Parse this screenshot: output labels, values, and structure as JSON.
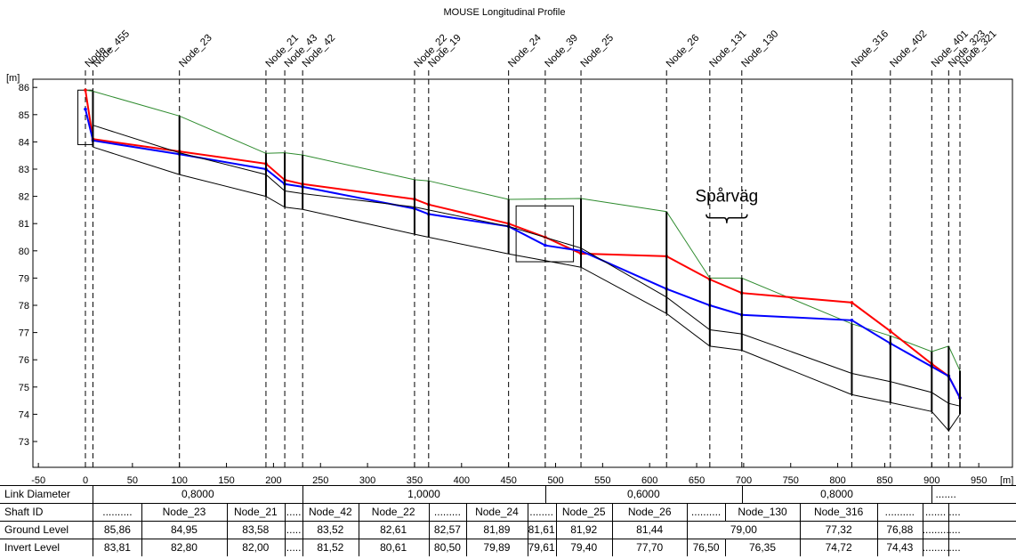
{
  "chart_data": {
    "type": "line",
    "title": "MOUSE Longitudinal Profile",
    "y_unit": "[m]",
    "x_unit": "[m]",
    "xlim": [
      -50,
      950
    ],
    "ylim": [
      72.5,
      86.3
    ],
    "x_ticks": [
      -50,
      0,
      50,
      100,
      150,
      200,
      250,
      300,
      350,
      400,
      450,
      500,
      550,
      600,
      650,
      700,
      750,
      800,
      850,
      900,
      950
    ],
    "y_ticks": [
      73,
      74,
      75,
      76,
      77,
      78,
      79,
      80,
      81,
      82,
      83,
      84,
      85,
      86
    ],
    "nodes": [
      {
        "x": 0,
        "label": "Node_455b"
      },
      {
        "x": 8,
        "label": "Node_455"
      },
      {
        "x": 100,
        "label": "Node_23"
      },
      {
        "x": 192,
        "label": "Node_21"
      },
      {
        "x": 212,
        "label": "Node_43"
      },
      {
        "x": 231,
        "label": "Node_42"
      },
      {
        "x": 350,
        "label": "Node_22"
      },
      {
        "x": 365,
        "label": "Node_19"
      },
      {
        "x": 450,
        "label": "Node_24"
      },
      {
        "x": 489,
        "label": "Node_39"
      },
      {
        "x": 527,
        "label": "Node_25"
      },
      {
        "x": 618,
        "label": "Node_26"
      },
      {
        "x": 664,
        "label": "Node_131"
      },
      {
        "x": 698,
        "label": "Node_130"
      },
      {
        "x": 815,
        "label": "Node_316"
      },
      {
        "x": 856,
        "label": "Node_402"
      },
      {
        "x": 900,
        "label": "Node_401"
      },
      {
        "x": 918,
        "label": "Node_323"
      },
      {
        "x": 930,
        "label": "Node_321"
      }
    ],
    "node_label_text": {
      "n0": "Node_",
      "n1": "Node_455",
      "n2": "Node_23",
      "n3": "Node_21",
      "n4": "Node_43",
      "n5": "Node_42",
      "n6": "Node_22",
      "n7": "Node_19",
      "n8": "Node_24",
      "n9": "Node_39",
      "n10": "Node_25",
      "n11": "Node_26",
      "n12": "Node_131",
      "n13": "Node_130",
      "n14": "Node_316",
      "n15": "Node_402",
      "n16": "Node_401",
      "n17": "Node_323",
      "n18": "Node_321"
    },
    "series": [
      {
        "key": "ground",
        "color": "#2e8b2e",
        "x": [
          0,
          8,
          100,
          192,
          212,
          231,
          350,
          365,
          450,
          527,
          618,
          664,
          698,
          815,
          856,
          900,
          918,
          930
        ],
        "y": [
          85.9,
          85.86,
          84.95,
          83.58,
          83.6,
          83.52,
          82.61,
          82.57,
          81.89,
          81.92,
          81.44,
          79.0,
          79.0,
          77.32,
          76.88,
          76.3,
          76.5,
          75.6
        ]
      },
      {
        "key": "max_level",
        "color": "#ff0000",
        "x": [
          0,
          8,
          100,
          192,
          212,
          231,
          350,
          365,
          450,
          489,
          527,
          618,
          664,
          698,
          815,
          856,
          900,
          918,
          930
        ],
        "y": [
          85.9,
          84.1,
          83.65,
          83.2,
          82.6,
          82.45,
          81.9,
          81.7,
          81.0,
          80.5,
          79.9,
          79.8,
          78.95,
          78.45,
          78.1,
          77.05,
          75.85,
          75.4,
          74.6
        ]
      },
      {
        "key": "min_level",
        "color": "#0000ff",
        "x": [
          0,
          8,
          100,
          192,
          212,
          231,
          350,
          365,
          450,
          489,
          527,
          618,
          664,
          698,
          815,
          856,
          900,
          918,
          930
        ],
        "y": [
          85.2,
          84.05,
          83.55,
          83.0,
          82.45,
          82.35,
          81.55,
          81.35,
          80.9,
          80.2,
          80.0,
          78.6,
          78.0,
          77.65,
          77.45,
          76.6,
          75.75,
          75.4,
          74.6
        ]
      },
      {
        "key": "pipe_crown",
        "color": "#000000",
        "x": [
          8,
          100,
          192,
          212,
          231,
          350,
          365,
          450,
          527,
          618,
          664,
          698,
          815,
          856,
          900,
          918,
          930
        ],
        "y": [
          84.61,
          83.6,
          82.8,
          82.2,
          82.1,
          81.61,
          81.5,
          80.9,
          80.1,
          78.3,
          77.1,
          76.95,
          75.5,
          75.2,
          74.8,
          74.4,
          74.3
        ]
      },
      {
        "key": "pipe_invert",
        "color": "#000000",
        "x": [
          8,
          100,
          192,
          212,
          231,
          350,
          365,
          450,
          527,
          618,
          664,
          698,
          815,
          856,
          900,
          918,
          930
        ],
        "y": [
          83.81,
          82.8,
          82.0,
          81.6,
          81.52,
          80.61,
          80.5,
          79.89,
          79.4,
          77.7,
          76.5,
          76.35,
          74.72,
          74.43,
          74.1,
          73.4,
          74.0
        ]
      }
    ],
    "annotations": [
      {
        "text": "Spårväg",
        "x": 682,
        "y": 81.8
      }
    ]
  },
  "table": {
    "rows": [
      {
        "key": "diam",
        "label": "Link Diameter",
        "cells": [
          {
            "text": "0,8000",
            "x0": 8,
            "x1": 231
          },
          {
            "text": "1,0000",
            "x0": 231,
            "x1": 489
          },
          {
            "text": "0,6000",
            "x0": 489,
            "x1": 698
          },
          {
            "text": "0,8000",
            "x0": 698,
            "x1": 900
          },
          {
            "text": ".......",
            "x0": 900,
            "x1": 930
          }
        ]
      },
      {
        "key": "shaft",
        "label": "Shaft ID",
        "cells": [
          {
            "text": "..........",
            "x0": 8,
            "x1": 60
          },
          {
            "text": "Node_23",
            "x0": 60,
            "x1": 150
          },
          {
            "text": "Node_21",
            "x0": 150,
            "x1": 212
          },
          {
            "text": ".....",
            "x0": 212,
            "x1": 231
          },
          {
            "text": "Node_42",
            "x0": 231,
            "x1": 290
          },
          {
            "text": "Node_22",
            "x0": 290,
            "x1": 365
          },
          {
            "text": ".........",
            "x0": 365,
            "x1": 405
          },
          {
            "text": "Node_24",
            "x0": 405,
            "x1": 470
          },
          {
            "text": "........",
            "x0": 470,
            "x1": 500
          },
          {
            "text": "Node_25",
            "x0": 500,
            "x1": 560
          },
          {
            "text": "Node_26",
            "x0": 560,
            "x1": 640
          },
          {
            "text": "..........",
            "x0": 640,
            "x1": 680
          },
          {
            "text": "Node_130",
            "x0": 680,
            "x1": 760
          },
          {
            "text": "Node_316",
            "x0": 760,
            "x1": 842
          },
          {
            "text": "..........",
            "x0": 842,
            "x1": 890
          },
          {
            "text": ".......",
            "x0": 890,
            "x1": 918
          },
          {
            "text": ".....",
            "x0": 918,
            "x1": 930
          }
        ]
      },
      {
        "key": "ground",
        "label": "Ground Level",
        "cells": [
          {
            "text": "85,86",
            "x0": 8,
            "x1": 60
          },
          {
            "text": "84,95",
            "x0": 60,
            "x1": 150
          },
          {
            "text": "83,58",
            "x0": 150,
            "x1": 212
          },
          {
            "text": ".....",
            "x0": 212,
            "x1": 231
          },
          {
            "text": "83,52",
            "x0": 231,
            "x1": 290
          },
          {
            "text": "82,61",
            "x0": 290,
            "x1": 365
          },
          {
            "text": "82,57",
            "x0": 365,
            "x1": 405
          },
          {
            "text": "81,89",
            "x0": 405,
            "x1": 470
          },
          {
            "text": "81,61",
            "x0": 470,
            "x1": 500
          },
          {
            "text": "81,92",
            "x0": 500,
            "x1": 560
          },
          {
            "text": "81,44",
            "x0": 560,
            "x1": 640
          },
          {
            "text": "79,00",
            "x0": 640,
            "x1": 760
          },
          {
            "text": "77,32",
            "x0": 760,
            "x1": 842
          },
          {
            "text": "76,88",
            "x0": 842,
            "x1": 890
          },
          {
            "text": "..........",
            "x0": 890,
            "x1": 918
          },
          {
            "text": ".....",
            "x0": 918,
            "x1": 930
          }
        ]
      },
      {
        "key": "invert",
        "label": "Invert Level",
        "cells": [
          {
            "text": "83,81",
            "x0": 8,
            "x1": 60
          },
          {
            "text": "82,80",
            "x0": 60,
            "x1": 150
          },
          {
            "text": "82,00",
            "x0": 150,
            "x1": 212
          },
          {
            "text": ".....",
            "x0": 212,
            "x1": 231
          },
          {
            "text": "81,52",
            "x0": 231,
            "x1": 290
          },
          {
            "text": "80,61",
            "x0": 290,
            "x1": 365
          },
          {
            "text": "80,50",
            "x0": 365,
            "x1": 405
          },
          {
            "text": "79,89",
            "x0": 405,
            "x1": 470
          },
          {
            "text": "79,61",
            "x0": 470,
            "x1": 500
          },
          {
            "text": "79,40",
            "x0": 500,
            "x1": 560
          },
          {
            "text": "77,70",
            "x0": 560,
            "x1": 640
          },
          {
            "text": "76,50",
            "x0": 640,
            "x1": 680
          },
          {
            "text": "76,35",
            "x0": 680,
            "x1": 760
          },
          {
            "text": "74,72",
            "x0": 760,
            "x1": 842
          },
          {
            "text": "74,43",
            "x0": 842,
            "x1": 890
          },
          {
            "text": "..........",
            "x0": 890,
            "x1": 918
          },
          {
            "text": ".....",
            "x0": 918,
            "x1": 930
          }
        ]
      }
    ]
  }
}
